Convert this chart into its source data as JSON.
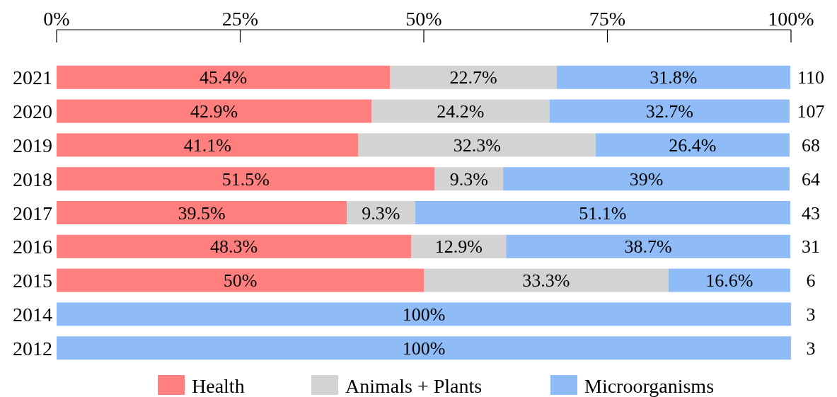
{
  "chart_data": {
    "type": "bar",
    "orientation": "horizontal",
    "stacked": true,
    "categories": [
      "2021",
      "2020",
      "2019",
      "2018",
      "2017",
      "2016",
      "2015",
      "2014",
      "2012"
    ],
    "series": [
      {
        "name": "Health",
        "color": "#ff7f7f",
        "values": [
          45.4,
          42.9,
          41.1,
          51.5,
          39.5,
          48.3,
          50,
          0,
          0
        ],
        "value_labels": [
          "45.4%",
          "42.9%",
          "41.1%",
          "51.5%",
          "39.5%",
          "48.3%",
          "50%",
          null,
          null
        ]
      },
      {
        "name": "Animals + Plants",
        "color": "#d3d3d3",
        "values": [
          22.7,
          24.2,
          32.3,
          9.3,
          9.3,
          12.9,
          33.3,
          0,
          0
        ],
        "value_labels": [
          "22.7%",
          "24.2%",
          "32.3%",
          "9.3%",
          "9.3%",
          "12.9%",
          "33.3%",
          null,
          null
        ]
      },
      {
        "name": "Microorganisms",
        "color": "#8fbcf7",
        "values": [
          31.8,
          32.7,
          26.4,
          39,
          51.1,
          38.7,
          16.6,
          100,
          100
        ],
        "value_labels": [
          "31.8%",
          "32.7%",
          "26.4%",
          "39%",
          "51.1%",
          "38.7%",
          "16.6%",
          "100%",
          "100%"
        ]
      }
    ],
    "annotations": [
      "110",
      "107",
      "68",
      "64",
      "43",
      "31",
      "6",
      "3",
      "3"
    ],
    "xlim": [
      0,
      100
    ],
    "xticks": [
      {
        "value": 0,
        "label": "0%"
      },
      {
        "value": 25,
        "label": "25%"
      },
      {
        "value": 50,
        "label": "50%"
      },
      {
        "value": 75,
        "label": "75%"
      },
      {
        "value": 100,
        "label": "100%"
      }
    ],
    "grid": false,
    "legend": "bottom"
  }
}
